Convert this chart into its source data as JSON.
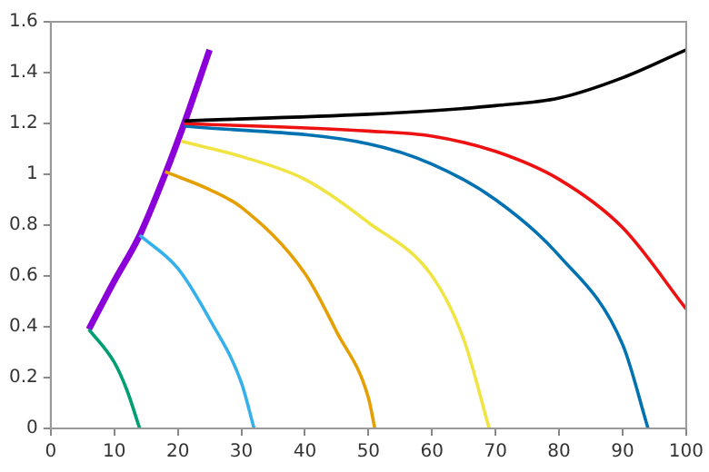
{
  "chart_data": {
    "type": "line",
    "xlim": [
      0,
      100
    ],
    "ylim": [
      0,
      1.6
    ],
    "xticks": [
      0,
      10,
      20,
      30,
      40,
      50,
      60,
      70,
      80,
      90,
      100
    ],
    "yticks": [
      0,
      0.2,
      0.4,
      0.6,
      0.8,
      1,
      1.2,
      1.4,
      1.6
    ],
    "grid": false,
    "legend": false,
    "marker": "none",
    "line_style": "solid",
    "series": [
      {
        "color": "#8b00d9",
        "x": [
          6,
          10,
          14,
          18,
          21,
          25
        ],
        "values": [
          0.39,
          0.58,
          0.76,
          1.0,
          1.2,
          1.49
        ]
      },
      {
        "color": "#009e73",
        "x": [
          6,
          10,
          12,
          14
        ],
        "values": [
          0.39,
          0.26,
          0.15,
          0
        ]
      },
      {
        "color": "#35b0ea",
        "x": [
          14,
          20,
          25,
          30,
          32
        ],
        "values": [
          0.76,
          0.63,
          0.43,
          0.18,
          0
        ]
      },
      {
        "color": "#e69f00",
        "x": [
          18,
          25,
          30,
          40,
          45,
          50,
          51
        ],
        "values": [
          1.01,
          0.94,
          0.87,
          0.61,
          0.38,
          0.12,
          0
        ]
      },
      {
        "color": "#f0e442",
        "x": [
          20.5,
          30,
          40,
          50,
          60,
          65,
          69
        ],
        "values": [
          1.13,
          1.07,
          0.98,
          0.81,
          0.6,
          0.35,
          0
        ]
      },
      {
        "color": "#0072b2",
        "x": [
          21,
          50,
          60,
          70,
          80,
          90,
          94
        ],
        "values": [
          1.19,
          1.12,
          1.04,
          0.9,
          0.68,
          0.33,
          0
        ]
      },
      {
        "color": "#ee1111",
        "x": [
          21,
          50,
          60,
          70,
          80,
          90,
          100
        ],
        "values": [
          1.2,
          1.17,
          1.15,
          1.09,
          0.98,
          0.79,
          0.47
        ]
      },
      {
        "color": "#000000",
        "x": [
          21,
          50,
          60,
          70,
          80,
          90,
          100
        ],
        "values": [
          1.21,
          1.236,
          1.25,
          1.27,
          1.3,
          1.38,
          1.49
        ]
      }
    ]
  }
}
